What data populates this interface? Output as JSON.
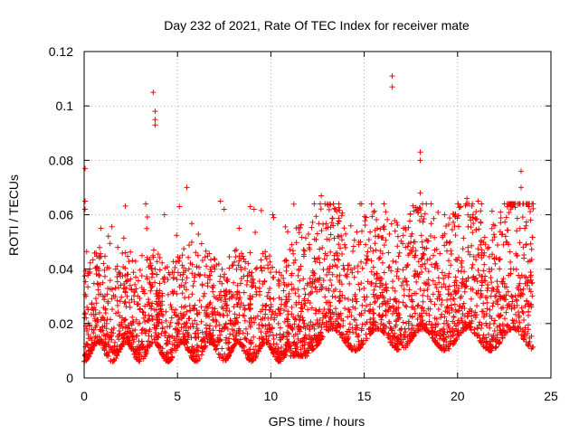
{
  "chart_data": {
    "type": "scatter",
    "title": "Day 232 of 2021, Rate Of TEC Index for receiver mate",
    "xlabel": "GPS time / hours",
    "ylabel": "ROTI / TECUs",
    "xlim": [
      0,
      25
    ],
    "ylim": [
      0,
      0.12
    ],
    "xticks": [
      0,
      5,
      10,
      15,
      20,
      25
    ],
    "yticks": [
      0,
      0.02,
      0.04,
      0.06,
      0.08,
      0.1,
      0.12
    ],
    "xtick_labels": [
      "0",
      "5",
      "10",
      "15",
      "20",
      "25"
    ],
    "ytick_labels": [
      "0",
      "0.02",
      "0.04",
      "0.06",
      "0.08",
      "0.1",
      "0.12"
    ],
    "grid": true,
    "marker": "+",
    "series_color": "#ff0000",
    "series": [
      {
        "name": "ROTI",
        "x": [
          0.05,
          0.05,
          0.05,
          0.1,
          0.15,
          0.2,
          0.3,
          0.5,
          0.7,
          0.9,
          1.0,
          1.2,
          1.5,
          1.8,
          2.0,
          2.3,
          2.6,
          2.9,
          3.1,
          3.3,
          3.5,
          3.7,
          3.8,
          3.8,
          3.8,
          3.8,
          4.0,
          4.3,
          4.6,
          4.9,
          5.1,
          5.3,
          5.5,
          5.8,
          6.1,
          6.4,
          6.7,
          7.0,
          7.3,
          7.5,
          7.6,
          8.0,
          8.3,
          8.6,
          8.9,
          9.1,
          9.2,
          9.5,
          9.8,
          10.1,
          10.4,
          10.7,
          11.0,
          11.2,
          11.5,
          11.8,
          12.1,
          12.4,
          12.7,
          12.9,
          13.0,
          13.3,
          13.6,
          13.9,
          14.2,
          14.5,
          14.8,
          15.1,
          15.4,
          15.7,
          16.0,
          16.3,
          16.5,
          16.5,
          16.8,
          17.1,
          17.4,
          17.7,
          18.0,
          18.0,
          18.0,
          18.1,
          18.4,
          18.7,
          19.0,
          19.3,
          19.6,
          19.9,
          20.2,
          20.5,
          20.8,
          21.1,
          21.4,
          21.7,
          22.0,
          22.3,
          22.6,
          22.9,
          23.2,
          23.4,
          23.4,
          23.6,
          23.8,
          24.0
        ],
        "y": [
          0.077,
          0.065,
          0.062,
          0.03,
          0.018,
          0.012,
          0.04,
          0.025,
          0.015,
          0.055,
          0.035,
          0.02,
          0.01,
          0.048,
          0.012,
          0.03,
          0.015,
          0.02,
          0.045,
          0.064,
          0.035,
          0.105,
          0.098,
          0.095,
          0.093,
          0.04,
          0.02,
          0.06,
          0.015,
          0.025,
          0.063,
          0.038,
          0.07,
          0.02,
          0.045,
          0.03,
          0.018,
          0.04,
          0.065,
          0.062,
          0.02,
          0.035,
          0.055,
          0.025,
          0.063,
          0.062,
          0.04,
          0.015,
          0.03,
          0.06,
          0.02,
          0.035,
          0.01,
          0.008,
          0.03,
          0.02,
          0.035,
          0.025,
          0.067,
          0.064,
          0.045,
          0.03,
          0.02,
          0.04,
          0.025,
          0.03,
          0.05,
          0.059,
          0.035,
          0.055,
          0.03,
          0.025,
          0.111,
          0.107,
          0.04,
          0.055,
          0.03,
          0.045,
          0.083,
          0.08,
          0.068,
          0.05,
          0.03,
          0.045,
          0.035,
          0.06,
          0.05,
          0.025,
          0.03,
          0.066,
          0.059,
          0.065,
          0.045,
          0.04,
          0.03,
          0.061,
          0.05,
          0.03,
          0.045,
          0.076,
          0.07,
          0.055,
          0.063,
          0.035
        ]
      }
    ]
  }
}
